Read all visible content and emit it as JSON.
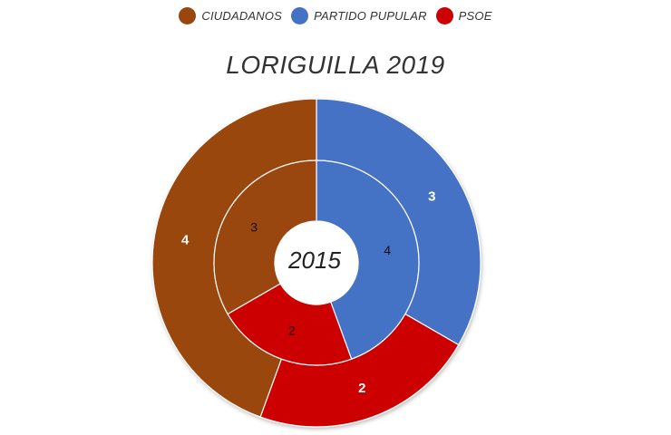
{
  "chart_data": {
    "type": "pie",
    "title": "LORIGUILLA 2019",
    "center_label": "2015",
    "legend": [
      {
        "name": "CIUDADANOS",
        "color": "#9a460f"
      },
      {
        "name": "PARTIDO PUPULAR",
        "color": "#4472c4"
      },
      {
        "name": "PSOE",
        "color": "#cc0000"
      }
    ],
    "series": [
      {
        "name": "2019",
        "ring": "outer",
        "slices": [
          {
            "label": "PARTIDO PUPULAR",
            "value": 3,
            "color": "#4472c4"
          },
          {
            "label": "PSOE",
            "value": 2,
            "color": "#cc0000"
          },
          {
            "label": "CIUDADANOS",
            "value": 4,
            "color": "#9a460f"
          }
        ]
      },
      {
        "name": "2015",
        "ring": "inner",
        "slices": [
          {
            "label": "PARTIDO PUPULAR",
            "value": 4,
            "color": "#4472c4"
          },
          {
            "label": "PSOE",
            "value": 2,
            "color": "#cc0000"
          },
          {
            "label": "CIUDADANOS",
            "value": 3,
            "color": "#9a460f"
          }
        ]
      }
    ],
    "legend_position": "top"
  }
}
